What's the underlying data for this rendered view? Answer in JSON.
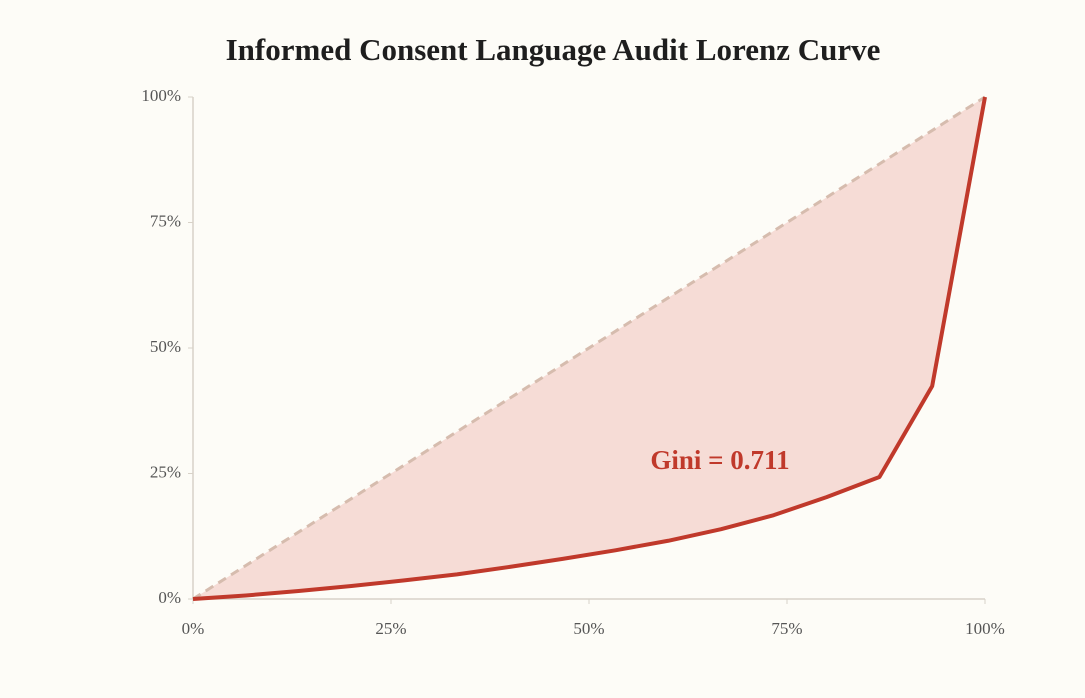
{
  "chart_data": {
    "type": "line",
    "title": "Informed Consent Language Audit Lorenz Curve",
    "annotation": "Gini = 0.711",
    "xlim": [
      0,
      100
    ],
    "ylim": [
      0,
      100
    ],
    "xticks": [
      {
        "value": 0,
        "label": "0%"
      },
      {
        "value": 25,
        "label": "25%"
      },
      {
        "value": 50,
        "label": "50%"
      },
      {
        "value": 75,
        "label": "75%"
      },
      {
        "value": 100,
        "label": "100%"
      }
    ],
    "yticks": [
      {
        "value": 0,
        "label": "0%"
      },
      {
        "value": 25,
        "label": "25%"
      },
      {
        "value": 50,
        "label": "50%"
      },
      {
        "value": 75,
        "label": "75%"
      },
      {
        "value": 100,
        "label": "100%"
      }
    ],
    "fill_color": "#f6dcd6",
    "series": [
      {
        "color": "#c0392b",
        "x": [
          0,
          6.67,
          13.33,
          20,
          26.67,
          33.33,
          40,
          46.67,
          53.33,
          60,
          66.67,
          73.33,
          80,
          86.67,
          93.33,
          100
        ],
        "values": [
          0,
          0.7,
          1.6,
          2.6,
          3.7,
          4.9,
          6.4,
          8.0,
          9.7,
          11.6,
          13.9,
          16.7,
          20.3,
          24.3,
          42.4,
          100
        ]
      },
      {
        "color": "#d6bcae",
        "dashed": true,
        "x": [
          0,
          100
        ],
        "values": [
          0,
          100
        ]
      }
    ]
  }
}
